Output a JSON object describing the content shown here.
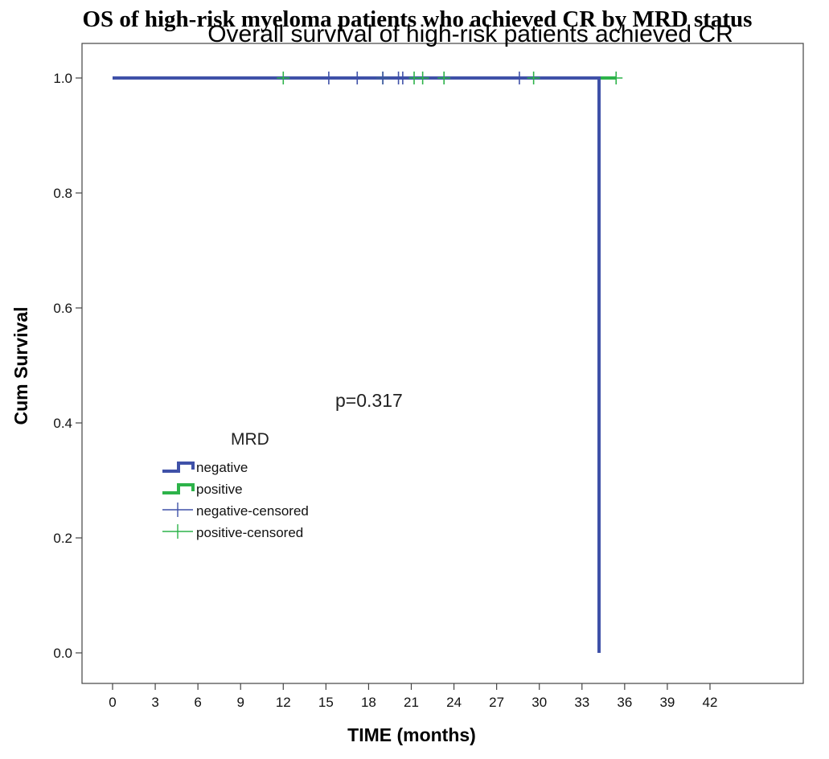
{
  "chart_data": {
    "type": "line",
    "title": "OS of high-risk myeloma patients who achieved CR by MRD status",
    "subtitle": "Overall survival of high-risk patients achieved CR",
    "xlabel": "TIME (months)",
    "ylabel": "Cum Survival",
    "xlim": [
      -2,
      42
    ],
    "ylim": [
      -0.05,
      1.06
    ],
    "xticks": [
      0,
      3,
      6,
      9,
      12,
      15,
      18,
      21,
      24,
      27,
      30,
      33,
      36,
      39,
      42
    ],
    "yticks": [
      0.0,
      0.2,
      0.4,
      0.6,
      0.8,
      1.0
    ],
    "xtick_labels": [
      "0",
      "3",
      "6",
      "9",
      "12",
      "15",
      "18",
      "21",
      "24",
      "27",
      "30",
      "33",
      "36",
      "39",
      "42"
    ],
    "ytick_labels": [
      "0.0",
      "0.2",
      "0.4",
      "0.6",
      "0.8",
      "1.0"
    ],
    "series": [
      {
        "name": "negative",
        "color": "#3f51a8",
        "step_x": [
          0,
          34.2,
          34.2
        ],
        "step_y": [
          1.0,
          1.0,
          0.0
        ],
        "censored_x": [
          15.2,
          17.2,
          19.0,
          20.1,
          20.4,
          28.6
        ],
        "censored_y": 1.0
      },
      {
        "name": "positive",
        "color": "#2db34a",
        "step_x": [
          0,
          35.4
        ],
        "step_y": [
          1.0,
          1.0
        ],
        "censored_x": [
          12.0,
          19.0,
          21.2,
          21.8,
          23.3,
          29.6,
          35.4
        ],
        "censored_y": 1.0
      }
    ],
    "annotation": "p=0.317",
    "grid": false,
    "legend": {
      "title": "MRD",
      "position": "center-left",
      "entries": [
        "negative",
        "positive",
        "negative-censored",
        "positive-censored"
      ]
    }
  }
}
